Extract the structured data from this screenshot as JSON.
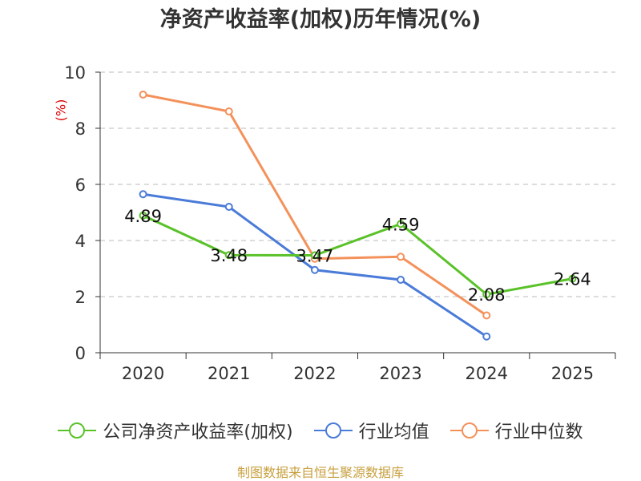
{
  "chart_data": {
    "type": "line",
    "title": "净资产收益率(加权)历年情况(%)",
    "ylabel": "(%)",
    "xlabel": "",
    "categories": [
      "2020",
      "2021",
      "2022",
      "2023",
      "2024",
      "2025"
    ],
    "ylim": [
      0,
      10
    ],
    "yticks": [
      0,
      2,
      4,
      6,
      8,
      10
    ],
    "grid": true,
    "legend_position": "bottom",
    "series": [
      {
        "name": "公司净资产收益率(加权)",
        "color": "#5ac229",
        "labels": true,
        "values": [
          4.89,
          3.48,
          3.47,
          4.59,
          2.08,
          2.64
        ]
      },
      {
        "name": "行业均值",
        "color": "#4a7bd8",
        "labels": false,
        "values": [
          5.65,
          5.2,
          2.95,
          2.6,
          0.58,
          null
        ]
      },
      {
        "name": "行业中位数",
        "color": "#f4915a",
        "labels": false,
        "values": [
          9.2,
          8.6,
          3.35,
          3.42,
          1.33,
          null
        ]
      }
    ],
    "source": "制图数据来自恒生聚源数据库"
  }
}
